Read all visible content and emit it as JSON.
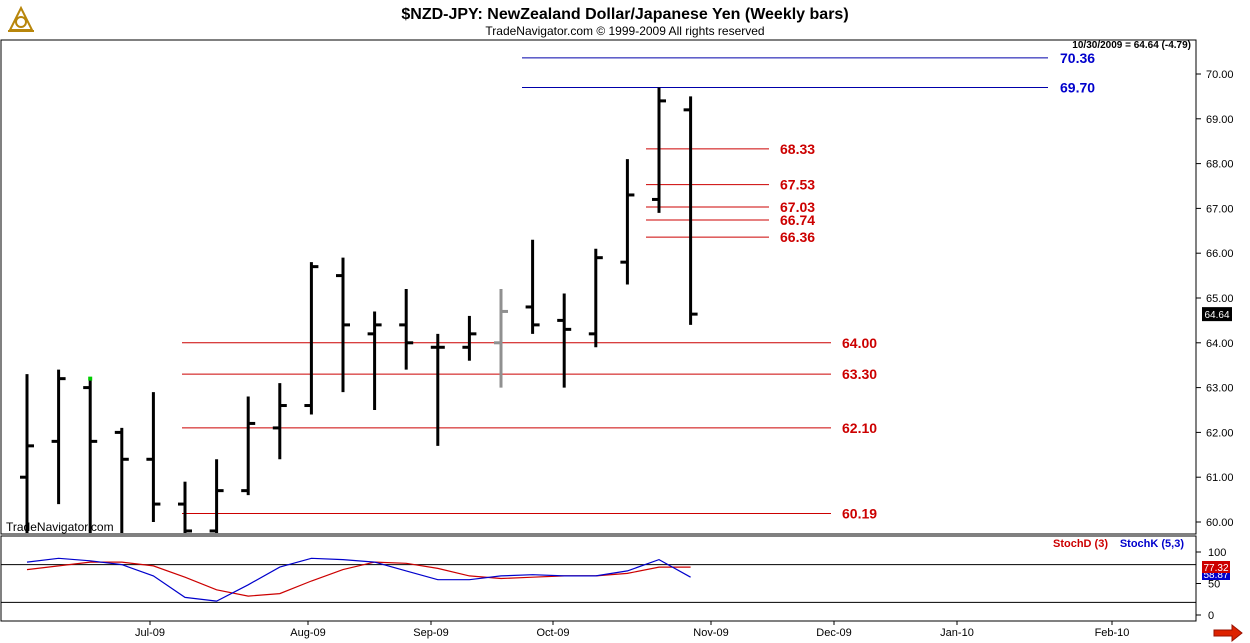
{
  "header": {
    "title": "$NZD-JPY:  NewZealand Dollar/Japanese Yen  (Weekly bars)",
    "subtitle": "TradeNavigator.com © 1999-2009 All rights reserved",
    "last_bar": "10/30/2009 = 64.64 (-4.79)",
    "watermark": "TradeNavigator.com"
  },
  "colors": {
    "bar": "#000000",
    "grey_bar": "#909090",
    "support_line": "#cc0000",
    "blue_line": "#0000aa",
    "red_label": "#cc0000",
    "blue_label": "#0000cc",
    "stoch_d": "#cc0000",
    "stoch_k": "#0000cc",
    "price_box": "#000000"
  },
  "chart_data": {
    "type": "ohlc",
    "y_axis_ticks": [
      "70.00",
      "69.00",
      "68.00",
      "67.00",
      "66.00",
      "65.00",
      "64.00",
      "63.00",
      "62.00",
      "61.00",
      "60.00"
    ],
    "x_axis_ticks": [
      "Jul-09",
      "Aug-09",
      "Sep-09",
      "Oct-09",
      "Nov-09",
      "Dec-09",
      "Jan-10",
      "Feb-10"
    ],
    "ylim": [
      59.7,
      70.8
    ],
    "current_price": "64.64",
    "bars": [
      {
        "o": 61.0,
        "h": 63.3,
        "l": 59.7,
        "c": 61.7
      },
      {
        "o": 61.8,
        "h": 63.4,
        "l": 60.4,
        "c": 63.2
      },
      {
        "o": 63.0,
        "h": 63.2,
        "l": 59.7,
        "c": 61.8
      },
      {
        "o": 62.0,
        "h": 62.1,
        "l": 59.7,
        "c": 61.4
      },
      {
        "o": 61.4,
        "h": 62.9,
        "l": 60.0,
        "c": 60.4
      },
      {
        "o": 60.4,
        "h": 60.9,
        "l": 59.7,
        "c": 59.8
      },
      {
        "o": 59.8,
        "h": 61.4,
        "l": 59.7,
        "c": 60.7
      },
      {
        "o": 60.7,
        "h": 62.8,
        "l": 60.6,
        "c": 62.2
      },
      {
        "o": 62.1,
        "h": 63.1,
        "l": 61.4,
        "c": 62.6
      },
      {
        "o": 62.6,
        "h": 65.8,
        "l": 62.4,
        "c": 65.7
      },
      {
        "o": 65.5,
        "h": 65.9,
        "l": 62.9,
        "c": 64.4
      },
      {
        "o": 64.2,
        "h": 64.7,
        "l": 62.5,
        "c": 64.4
      },
      {
        "o": 64.4,
        "h": 65.2,
        "l": 63.4,
        "c": 64.0
      },
      {
        "o": 63.9,
        "h": 64.2,
        "l": 61.7,
        "c": 63.9
      },
      {
        "o": 63.9,
        "h": 64.6,
        "l": 63.6,
        "c": 64.2
      },
      {
        "o": 64.0,
        "h": 65.2,
        "l": 63.0,
        "c": 64.7,
        "grey": true
      },
      {
        "o": 64.8,
        "h": 66.3,
        "l": 64.2,
        "c": 64.4
      },
      {
        "o": 64.5,
        "h": 65.1,
        "l": 63.0,
        "c": 64.3
      },
      {
        "o": 64.2,
        "h": 66.1,
        "l": 63.9,
        "c": 65.9
      },
      {
        "o": 65.8,
        "h": 68.1,
        "l": 65.3,
        "c": 67.3
      },
      {
        "o": 67.2,
        "h": 69.7,
        "l": 66.9,
        "c": 69.4
      },
      {
        "o": 69.2,
        "h": 69.5,
        "l": 64.4,
        "c": 64.64
      }
    ],
    "levels": [
      {
        "value": 70.36,
        "label": "70.36",
        "color": "blue"
      },
      {
        "value": 69.7,
        "label": "69.70",
        "color": "blue"
      },
      {
        "value": 68.33,
        "label": "68.33",
        "color": "red"
      },
      {
        "value": 67.53,
        "label": "67.53",
        "color": "red"
      },
      {
        "value": 67.03,
        "label": "67.03",
        "color": "red"
      },
      {
        "value": 66.74,
        "label": "66.74",
        "color": "red"
      },
      {
        "value": 66.36,
        "label": "66.36",
        "color": "red"
      },
      {
        "value": 64.0,
        "label": "64.00",
        "color": "red"
      },
      {
        "value": 63.3,
        "label": "63.30",
        "color": "red"
      },
      {
        "value": 62.1,
        "label": "62.10",
        "color": "red"
      },
      {
        "value": 60.19,
        "label": "60.19",
        "color": "red"
      }
    ],
    "stochastic": {
      "legend_d": "StochD (3)",
      "legend_k": "StochK (5,3)",
      "y_ticks": [
        "100",
        "50",
        "0"
      ],
      "ylim": [
        0,
        100
      ],
      "reference_line": 80,
      "value_d": "77.32",
      "value_k": "58.87",
      "stoch_d": [
        72,
        78,
        84,
        84,
        78,
        60,
        40,
        30,
        34,
        54,
        72,
        84,
        82,
        74,
        62,
        58,
        60,
        62,
        62,
        66,
        76,
        76
      ],
      "stoch_k": [
        84,
        90,
        86,
        80,
        62,
        28,
        22,
        48,
        76,
        90,
        88,
        84,
        70,
        56,
        56,
        62,
        64,
        62,
        62,
        70,
        88,
        60
      ]
    }
  }
}
